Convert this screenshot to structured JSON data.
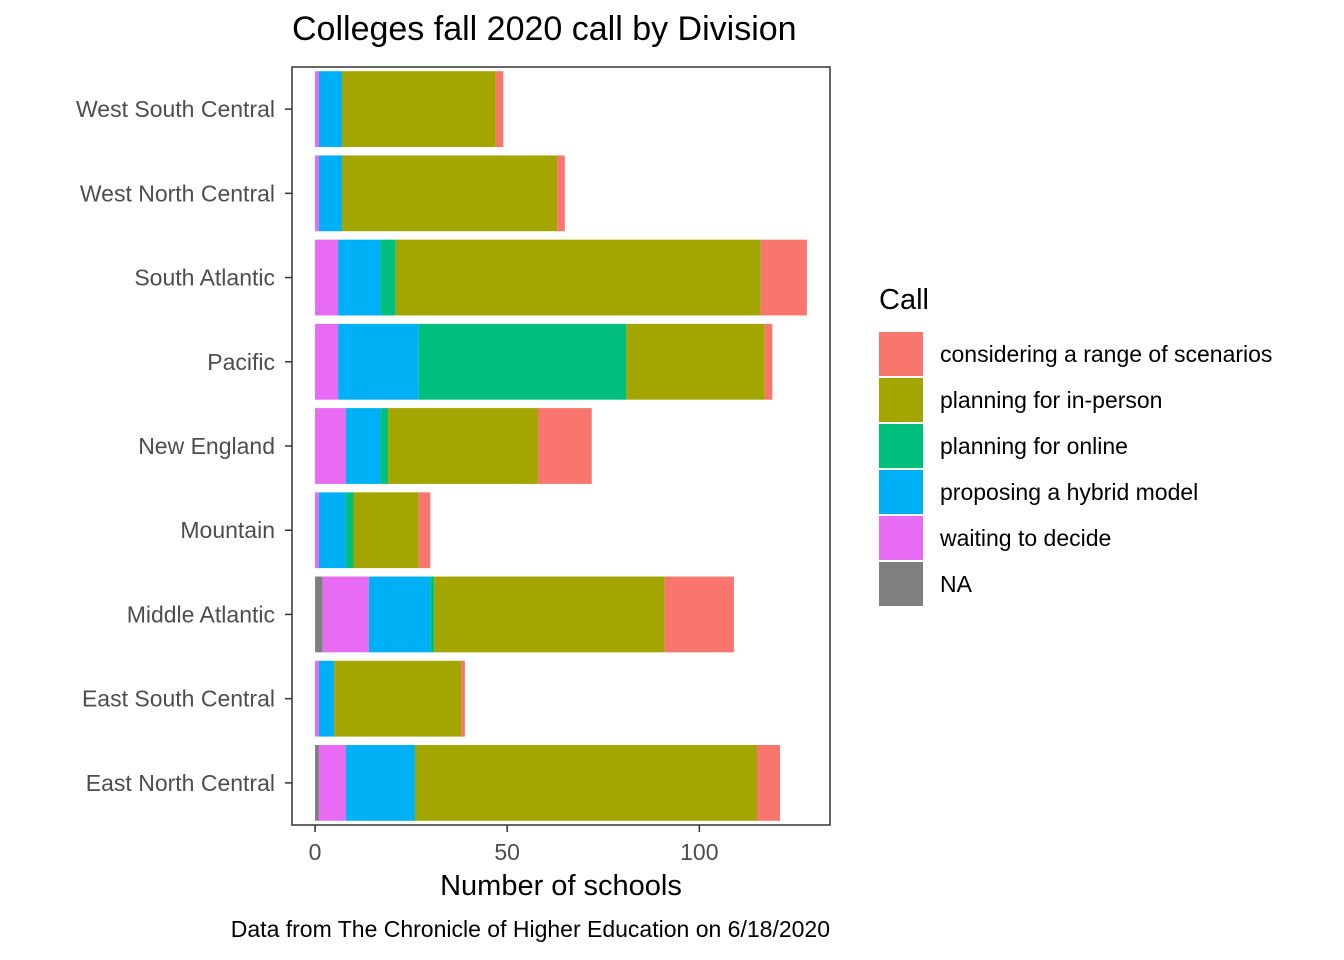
{
  "chart_data": {
    "type": "bar",
    "orientation": "horizontal",
    "stacked": true,
    "title": "Colleges fall 2020 call by Division",
    "xlabel": "Number of schools",
    "ylabel": "",
    "caption": "Data from The Chronicle of Higher Education on 6/18/2020",
    "legend_title": "Call",
    "legend_position": "right",
    "xlim": [
      -6,
      134
    ],
    "xticks": [
      0,
      50,
      100
    ],
    "grid": false,
    "categories": [
      "West South Central",
      "West North Central",
      "South Atlantic",
      "Pacific",
      "New England",
      "Mountain",
      "Middle Atlantic",
      "East South Central",
      "East North Central"
    ],
    "series": [
      {
        "name": "NA",
        "color": "#7F7F7F",
        "values": [
          0,
          0,
          0,
          0,
          0,
          0,
          2,
          0,
          1
        ]
      },
      {
        "name": "waiting to decide",
        "color": "#E76BF3",
        "values": [
          1,
          1,
          6,
          6,
          8,
          1,
          12,
          1,
          7
        ]
      },
      {
        "name": "proposing a hybrid model",
        "color": "#00B0F6",
        "values": [
          6,
          6,
          11,
          21,
          9,
          7,
          16,
          4,
          18
        ]
      },
      {
        "name": "planning for online",
        "color": "#00BF7D",
        "values": [
          0,
          0,
          4,
          54,
          2,
          2,
          1,
          0,
          0
        ]
      },
      {
        "name": "planning for in-person",
        "color": "#A3A500",
        "values": [
          40,
          56,
          95,
          36,
          39,
          17,
          60,
          33,
          89
        ]
      },
      {
        "name": "considering a range of scenarios",
        "color": "#F8766D",
        "values": [
          2,
          2,
          12,
          2,
          14,
          3,
          18,
          1,
          6
        ]
      }
    ],
    "legend_order": [
      "considering a range of scenarios",
      "planning for in-person",
      "planning for online",
      "proposing a hybrid model",
      "waiting to decide",
      "NA"
    ]
  }
}
